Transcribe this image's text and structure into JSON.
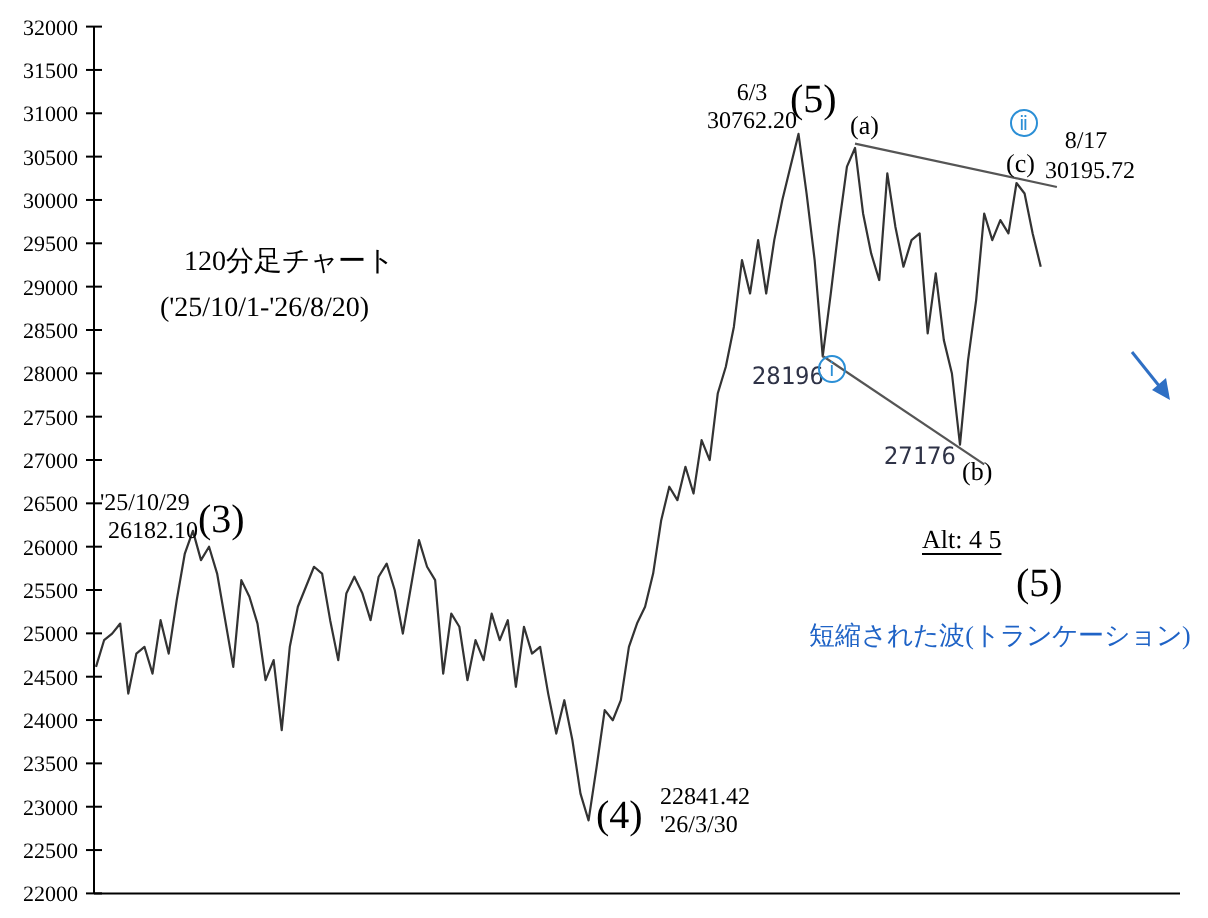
{
  "chart_data": {
    "type": "line",
    "subtitle": "120分足チャート",
    "categories": [
      null,
      null,
      null,
      null,
      null,
      null,
      null,
      null,
      null,
      null,
      null,
      null,
      null,
      null,
      null,
      null,
      null,
      null,
      null,
      null,
      null,
      null,
      null,
      null,
      null,
      null,
      null,
      null,
      null,
      null,
      null,
      null,
      null,
      null,
      null,
      null,
      null,
      null,
      null,
      null,
      null,
      null,
      null,
      null,
      null,
      null,
      null,
      null,
      null,
      null,
      null,
      null,
      null,
      null,
      null,
      null,
      null,
      null,
      null,
      null,
      null,
      null,
      null,
      null,
      null,
      null,
      null,
      null,
      null,
      null,
      null,
      null,
      null,
      null,
      null,
      null,
      null,
      null,
      null,
      null,
      null,
      null,
      null,
      null,
      null,
      null,
      null,
      null,
      null,
      null,
      null,
      null,
      null,
      null,
      null,
      null,
      null,
      null,
      null,
      null,
      null,
      null,
      null,
      null,
      null,
      null,
      null,
      null,
      null,
      null,
      null,
      null,
      null,
      null,
      null,
      null,
      null,
      null,
      null,
      null,
      null,
      null,
      null,
      null,
      null,
      null,
      null,
      null,
      null,
      null,
      null,
      null,
      null,
      null,
      null
    ],
    "series": [
      {
        "color": "#333333",
        "values": [
          24614,
          24921,
          24997,
          25113,
          24305,
          24767,
          24845,
          24536,
          25152,
          24767,
          25383,
          25921,
          26182.1,
          25845,
          25999,
          25690,
          25152,
          24614,
          25614,
          25422,
          25113,
          24460,
          24691,
          23883,
          24845,
          25307,
          25538,
          25768,
          25690,
          25152,
          24691,
          25459,
          25653,
          25459,
          25152,
          25653,
          25805,
          25498,
          24997,
          25538,
          26075,
          25768,
          25614,
          24536,
          25228,
          25076,
          24460,
          24921,
          24691,
          25228,
          24921,
          25152,
          24384,
          25076,
          24767,
          24845,
          24305,
          23844,
          24229,
          23767,
          23151,
          22841.42,
          23460,
          24114,
          23998,
          24229,
          24845,
          25113,
          25307,
          25690,
          26306,
          26692,
          26537,
          26922,
          26613,
          27229,
          26999,
          27767,
          28076,
          28538,
          29307,
          28921,
          29537,
          28921,
          29537,
          29999,
          30384,
          30762.2,
          30075,
          29307,
          28196,
          28921,
          29692,
          30384,
          30600,
          29844,
          29383,
          29076,
          30306,
          29692,
          29230,
          29537,
          29614,
          28460,
          29152,
          28383,
          27998,
          27176,
          28153,
          28845,
          29844,
          29537,
          29768,
          29614,
          30195.72,
          30075,
          29614,
          29230,
          null,
          null,
          null,
          null,
          null,
          null,
          null,
          null,
          null,
          null,
          null,
          null,
          null,
          null,
          null,
          null,
          null
        ]
      },
      {
        "color": "#555555",
        "values": [
          null,
          null,
          null,
          null,
          null,
          null,
          null,
          null,
          null,
          null,
          null,
          null,
          null,
          null,
          null,
          null,
          null,
          null,
          null,
          null,
          null,
          null,
          null,
          null,
          null,
          null,
          null,
          null,
          null,
          null,
          null,
          null,
          null,
          null,
          null,
          null,
          null,
          null,
          null,
          null,
          null,
          null,
          null,
          null,
          null,
          null,
          null,
          null,
          null,
          null,
          null,
          null,
          null,
          null,
          null,
          null,
          null,
          null,
          null,
          null,
          null,
          null,
          null,
          null,
          null,
          null,
          null,
          null,
          null,
          null,
          null,
          null,
          null,
          null,
          null,
          null,
          null,
          null,
          null,
          null,
          null,
          null,
          null,
          null,
          null,
          null,
          null,
          null,
          null,
          null,
          null,
          null,
          null,
          null,
          30650,
          null,
          null,
          null,
          null,
          null,
          null,
          null,
          null,
          null,
          null,
          null,
          null,
          null,
          null,
          null,
          null,
          null,
          null,
          null,
          null,
          null,
          null,
          null,
          null,
          30150,
          null,
          null,
          null,
          null,
          null,
          null,
          null,
          null,
          null,
          null,
          null,
          null,
          null,
          null,
          null
        ]
      },
      {
        "color": "#555555",
        "values": [
          null,
          null,
          null,
          null,
          null,
          null,
          null,
          null,
          null,
          null,
          null,
          null,
          null,
          null,
          null,
          null,
          null,
          null,
          null,
          null,
          null,
          null,
          null,
          null,
          null,
          null,
          null,
          null,
          null,
          null,
          null,
          null,
          null,
          null,
          null,
          null,
          null,
          null,
          null,
          null,
          null,
          null,
          null,
          null,
          null,
          null,
          null,
          null,
          null,
          null,
          null,
          null,
          null,
          null,
          null,
          null,
          null,
          null,
          null,
          null,
          null,
          null,
          null,
          null,
          null,
          null,
          null,
          null,
          null,
          null,
          null,
          null,
          null,
          null,
          null,
          null,
          null,
          null,
          null,
          null,
          null,
          null,
          null,
          null,
          null,
          null,
          null,
          null,
          null,
          null,
          28200,
          null,
          null,
          null,
          null,
          null,
          null,
          null,
          null,
          null,
          null,
          null,
          null,
          null,
          null,
          null,
          null,
          null,
          null,
          null,
          26950,
          null,
          null,
          null,
          null,
          null,
          null,
          null,
          null,
          null,
          null,
          null,
          null,
          null,
          null,
          null,
          null,
          null,
          null,
          null,
          null,
          null,
          null,
          null,
          null
        ]
      }
    ],
    "ylim": [
      22000,
      32000
    ],
    "yticks": [
      22000,
      22500,
      23000,
      23500,
      24000,
      24500,
      25000,
      25500,
      26000,
      26500,
      27000,
      27500,
      28000,
      28500,
      29000,
      29500,
      30000,
      30500,
      31000,
      31500,
      32000
    ],
    "grid": false,
    "marker": "none",
    "line_style": "solid",
    "tick_labels": "y",
    "annotations": [
      "('25/10/1-'26/8/20)",
      "'25/10/29",
      "26182.10",
      "(3)",
      "22841.42",
      "'26/3/30",
      "(4)",
      "6/3",
      "30762.20",
      "(5)",
      "(a)",
      "(b)",
      "(c)",
      "28196",
      "ⅰ",
      "27176",
      "ⅱ",
      "8/17",
      "30195.72",
      "Alt:  4      5",
      "(5)",
      "短縮された波(トランケーション)"
    ]
  }
}
